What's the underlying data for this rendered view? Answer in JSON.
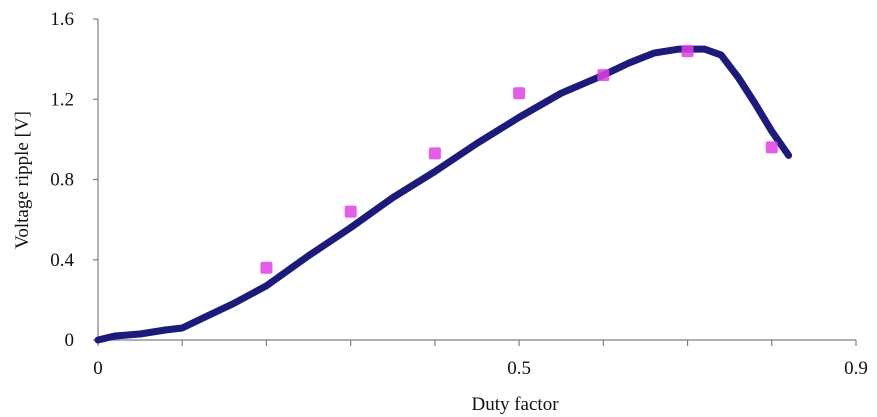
{
  "chart_data": {
    "type": "line",
    "title": "",
    "xlabel": "Duty factor",
    "ylabel": "Voltage ripple [V]",
    "xlim": [
      0,
      0.9
    ],
    "ylim": [
      0,
      1.6
    ],
    "x_ticks": [
      0,
      0.5,
      0.9
    ],
    "x_tick_labels": [
      "0",
      "0.5",
      "0.9"
    ],
    "y_ticks": [
      0,
      0.4,
      0.8,
      1.2,
      1.6
    ],
    "y_tick_labels": [
      "0",
      "0.4",
      "0.8",
      "1.2",
      "1.6"
    ],
    "x_minor_ticks": [
      0.1,
      0.2,
      0.3,
      0.4,
      0.6,
      0.7,
      0.8
    ],
    "grid": false,
    "legend": "none",
    "series": [
      {
        "type": "line",
        "color": "#1c1a7a",
        "x": [
          0,
          0.02,
          0.05,
          0.08,
          0.1,
          0.13,
          0.16,
          0.2,
          0.25,
          0.3,
          0.35,
          0.4,
          0.45,
          0.5,
          0.55,
          0.6,
          0.63,
          0.66,
          0.69,
          0.72,
          0.74,
          0.76,
          0.78,
          0.8,
          0.82
        ],
        "y": [
          0,
          0.02,
          0.03,
          0.05,
          0.06,
          0.12,
          0.18,
          0.27,
          0.42,
          0.56,
          0.71,
          0.84,
          0.98,
          1.11,
          1.23,
          1.32,
          1.38,
          1.43,
          1.45,
          1.45,
          1.42,
          1.31,
          1.18,
          1.04,
          0.92
        ]
      },
      {
        "type": "scatter",
        "color": "#e040e6",
        "x": [
          0.2,
          0.3,
          0.4,
          0.5,
          0.6,
          0.7,
          0.8
        ],
        "y": [
          0.36,
          0.64,
          0.93,
          1.23,
          1.32,
          1.44,
          0.96
        ]
      }
    ]
  }
}
